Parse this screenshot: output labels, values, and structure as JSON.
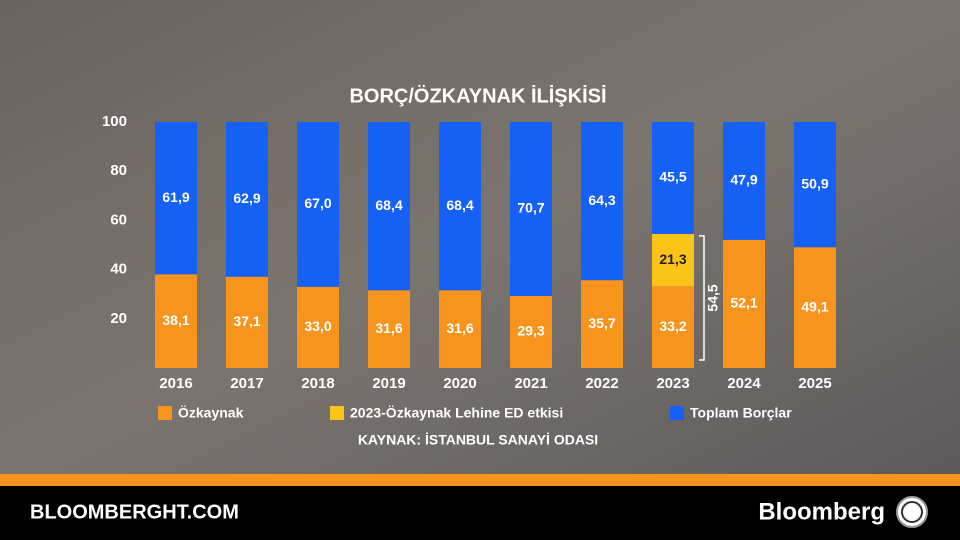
{
  "chart_data": {
    "type": "stacked_bar",
    "title": "BORÇ/ÖZKAYNAK İLİŞKİSİ",
    "categories": [
      "2016",
      "2017",
      "2018",
      "2019",
      "2020",
      "2021",
      "2022",
      "2023",
      "2024",
      "2025"
    ],
    "series": [
      {
        "name": "Özkaynak",
        "color": "#f7941d",
        "values": [
          38.1,
          37.1,
          33.0,
          31.6,
          31.6,
          29.3,
          35.7,
          33.2,
          52.1,
          49.1
        ],
        "value_labels": [
          "38,1",
          "37,1",
          "33,0",
          "31,6",
          "31,6",
          "29,3",
          "35,7",
          "33,2",
          "52,1",
          "49,1"
        ]
      },
      {
        "name": "2023-Özkaynak Lehine ED etkisi",
        "color": "#fcc419",
        "values": [
          null,
          null,
          null,
          null,
          null,
          null,
          null,
          21.3,
          null,
          null
        ],
        "value_labels": [
          null,
          null,
          null,
          null,
          null,
          null,
          null,
          "21,3",
          null,
          null
        ]
      },
      {
        "name": "Toplam Borçlar",
        "color": "#1560f5",
        "values": [
          61.9,
          62.9,
          67.0,
          68.4,
          68.4,
          70.7,
          64.3,
          45.5,
          47.9,
          50.9
        ],
        "value_labels": [
          "61,9",
          "62,9",
          "67,0",
          "68,4",
          "68,4",
          "70,7",
          "64,3",
          "45,5",
          "47,9",
          "50,9"
        ]
      }
    ],
    "ylim": [
      0,
      100
    ],
    "yticks": [
      20,
      40,
      60,
      80,
      100
    ],
    "annotation": "54,5",
    "source": "KAYNAK: İSTANBUL SANAYİ ODASI",
    "footer_left": "BLOOMBERGHT.COM",
    "footer_right": "Bloomberg"
  }
}
